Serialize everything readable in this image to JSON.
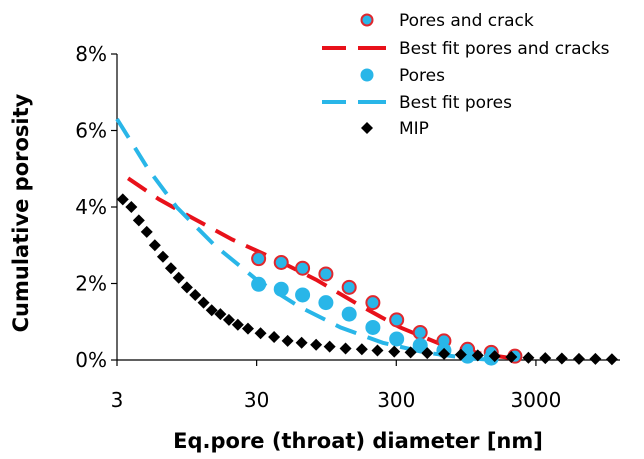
{
  "chart_data": {
    "type": "scatter",
    "xlabel": "Eq.pore (throat) diameter [nm]",
    "ylabel": "Cumulative porosity",
    "xscale": "log",
    "xlim": [
      3,
      12000
    ],
    "ylim": [
      0,
      8
    ],
    "x_ticks": [
      3,
      30,
      300,
      3000
    ],
    "x_tick_labels": [
      "3",
      "30",
      "300",
      "3000"
    ],
    "y_ticks": [
      0,
      2,
      4,
      6,
      8
    ],
    "y_tick_labels": [
      "0%",
      "2%",
      "4%",
      "6%",
      "8%"
    ],
    "grid": false,
    "legend_position": "top-right",
    "series": [
      {
        "name": "Pores and crack",
        "kind": "markers",
        "marker": "circle",
        "fill": "#29B6E8",
        "edge": "#E0282E",
        "x": [
          31,
          45,
          64,
          94,
          138,
          204,
          302,
          445,
          658,
          972,
          1436,
          2122
        ],
        "y": [
          2.65,
          2.55,
          2.4,
          2.25,
          1.9,
          1.5,
          1.05,
          0.72,
          0.5,
          0.28,
          0.2,
          0.1
        ]
      },
      {
        "name": "Best fit pores and cracks",
        "kind": "dashed-line",
        "color": "#E8111A",
        "x": [
          3.6,
          6,
          10,
          20,
          40,
          80,
          160,
          320,
          640,
          1280,
          2000,
          2500
        ],
        "y": [
          4.75,
          4.2,
          3.75,
          3.15,
          2.65,
          2.1,
          1.45,
          0.85,
          0.4,
          0.15,
          0.05,
          0.02
        ]
      },
      {
        "name": "Pores",
        "kind": "markers",
        "marker": "circle",
        "fill": "#29B6E8",
        "x": [
          31,
          45,
          64,
          94,
          138,
          204,
          302,
          445,
          658,
          972,
          1436
        ],
        "y": [
          1.98,
          1.85,
          1.7,
          1.5,
          1.2,
          0.85,
          0.55,
          0.38,
          0.25,
          0.1,
          0.05
        ]
      },
      {
        "name": "Best fit pores",
        "kind": "dashed-line",
        "color": "#29B6E8",
        "x": [
          3,
          5,
          8,
          15,
          30,
          60,
          120,
          240,
          480,
          960,
          1500
        ],
        "y": [
          6.3,
          5.0,
          4.0,
          3.0,
          2.1,
          1.4,
          0.85,
          0.45,
          0.2,
          0.05,
          0.0
        ]
      },
      {
        "name": "MIP",
        "kind": "markers",
        "marker": "diamond",
        "fill": "#000000",
        "x": [
          3.3,
          3.8,
          4.3,
          4.9,
          5.6,
          6.4,
          7.3,
          8.3,
          9.5,
          10.9,
          12.5,
          14.3,
          16.5,
          19,
          22,
          26,
          32,
          40,
          50,
          63,
          80,
          100,
          130,
          170,
          220,
          290,
          380,
          500,
          660,
          870,
          1150,
          1520,
          2000,
          2650,
          3500,
          4600,
          6100,
          8000,
          10500
        ],
        "y": [
          4.2,
          4.0,
          3.65,
          3.35,
          3.0,
          2.7,
          2.4,
          2.15,
          1.9,
          1.7,
          1.5,
          1.3,
          1.2,
          1.05,
          0.92,
          0.82,
          0.7,
          0.6,
          0.5,
          0.45,
          0.4,
          0.35,
          0.3,
          0.28,
          0.25,
          0.22,
          0.2,
          0.18,
          0.16,
          0.14,
          0.12,
          0.1,
          0.08,
          0.06,
          0.05,
          0.04,
          0.03,
          0.03,
          0.02
        ]
      }
    ]
  }
}
